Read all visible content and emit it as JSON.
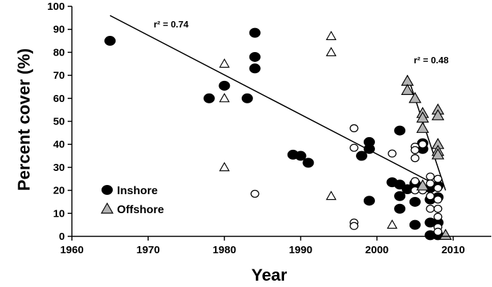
{
  "chart_data": {
    "type": "scatter",
    "xlabel": "Year",
    "ylabel": "Percent cover (%)",
    "xlim": [
      1960,
      2015
    ],
    "ylim": [
      0,
      100
    ],
    "xticks": [
      1960,
      1970,
      1980,
      1990,
      2000,
      2010
    ],
    "yticks": [
      0,
      10,
      20,
      30,
      40,
      50,
      60,
      70,
      80,
      90,
      100
    ],
    "grid": false,
    "legend_position": "bottom-left",
    "legend": [
      {
        "label": "Inshore",
        "marker": "filled-circle"
      },
      {
        "label": "Offshore",
        "marker": "gray-triangle"
      }
    ],
    "series": [
      {
        "name": "Inshore",
        "marker": "filled-circle",
        "color": "#000000",
        "points": [
          [
            1965,
            85
          ],
          [
            1978,
            60
          ],
          [
            1980,
            65.5
          ],
          [
            1983,
            60
          ],
          [
            1984,
            88.5
          ],
          [
            1984,
            78
          ],
          [
            1984,
            73
          ],
          [
            1989,
            35.5
          ],
          [
            1990,
            35
          ],
          [
            1991,
            32
          ],
          [
            1998,
            35
          ],
          [
            1999,
            38
          ],
          [
            1999,
            41
          ],
          [
            1999,
            15.5
          ],
          [
            2002,
            23.5
          ],
          [
            2003,
            46
          ],
          [
            2003,
            22.5
          ],
          [
            2003,
            17.5
          ],
          [
            2003,
            12
          ],
          [
            2004,
            20.5
          ],
          [
            2005,
            23
          ],
          [
            2005,
            15
          ],
          [
            2005,
            5
          ],
          [
            2006,
            40.5
          ],
          [
            2006,
            38
          ],
          [
            2007,
            21
          ],
          [
            2007,
            16
          ],
          [
            2007,
            6
          ],
          [
            2007,
            0.5
          ],
          [
            2008,
            22
          ],
          [
            2008,
            17
          ],
          [
            2008,
            6
          ],
          [
            2008,
            0.5
          ]
        ]
      },
      {
        "name": "Inshore (open)",
        "marker": "open-circle",
        "color": "#000000",
        "points": [
          [
            1984,
            18.5
          ],
          [
            1997,
            47
          ],
          [
            1997,
            38.5
          ],
          [
            1997,
            6
          ],
          [
            1997,
            4.5
          ],
          [
            2002,
            36
          ],
          [
            2005,
            39
          ],
          [
            2005,
            37.5
          ],
          [
            2005,
            34
          ],
          [
            2005,
            24
          ],
          [
            2005,
            20
          ],
          [
            2006,
            40
          ],
          [
            2006,
            20
          ],
          [
            2007,
            26
          ],
          [
            2007,
            23
          ],
          [
            2007,
            17.5
          ],
          [
            2007,
            12
          ],
          [
            2008,
            25
          ],
          [
            2008,
            21
          ],
          [
            2008,
            16
          ],
          [
            2008,
            12
          ],
          [
            2008,
            8.5
          ],
          [
            2008,
            4
          ],
          [
            2008,
            2
          ]
        ]
      },
      {
        "name": "Offshore",
        "marker": "gray-triangle",
        "color": "#b3b3b3",
        "points": [
          [
            2004,
            67.5
          ],
          [
            2004,
            63.5
          ],
          [
            2005,
            60
          ],
          [
            2006,
            53.5
          ],
          [
            2006,
            51.5
          ],
          [
            2006,
            47
          ],
          [
            2006,
            22
          ],
          [
            2008,
            55
          ],
          [
            2008,
            52.5
          ],
          [
            2008,
            40
          ],
          [
            2008,
            37
          ],
          [
            2008,
            35.5
          ],
          [
            2009,
            0.5
          ]
        ]
      },
      {
        "name": "Offshore (open)",
        "marker": "open-triangle",
        "color": "#ffffff",
        "points": [
          [
            1980,
            75
          ],
          [
            1980,
            60
          ],
          [
            1980,
            30
          ],
          [
            1994,
            87
          ],
          [
            1994,
            80
          ],
          [
            1994,
            17.5
          ],
          [
            2002,
            5
          ]
        ]
      }
    ],
    "trendlines": [
      {
        "label": "r² = 0.74",
        "from": [
          1965,
          96
        ],
        "to": [
          2008,
          22
        ]
      },
      {
        "label": "r² = 0.48",
        "from": [
          2004,
          70
        ],
        "to": [
          2009,
          20
        ]
      }
    ]
  }
}
